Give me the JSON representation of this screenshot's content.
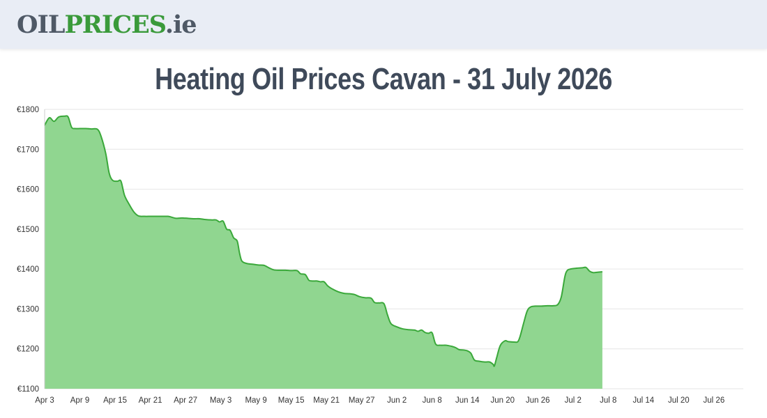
{
  "logo": {
    "part1": "OIL",
    "part2": "PRICES",
    "part3": ".ie"
  },
  "title": "Heating Oil Prices Cavan - 31 July 2026",
  "colors": {
    "area": "#90d690",
    "line": "#3aa83a",
    "grid": "#e6e6e6",
    "title": "#3f4a5a"
  },
  "chart_data": {
    "type": "area",
    "title": "Heating Oil Prices Cavan - 31 July 2026",
    "xlabel": "",
    "ylabel": "",
    "ylim": [
      1100,
      1800
    ],
    "y_ticks": [
      1100,
      1200,
      1300,
      1400,
      1500,
      1600,
      1700,
      1800
    ],
    "y_tick_labels": [
      "€1100",
      "€1200",
      "€1300",
      "€1400",
      "€1500",
      "€1600",
      "€1700",
      "€1800"
    ],
    "x_tick_labels": [
      "Apr 3",
      "Apr 9",
      "Apr 15",
      "Apr 21",
      "Apr 27",
      "May 3",
      "May 9",
      "May 15",
      "May 21",
      "May 27",
      "Jun 2",
      "Jun 8",
      "Jun 14",
      "Jun 20",
      "Jun 26",
      "Jul 2",
      "Jul 8",
      "Jul 14",
      "Jul 20",
      "Jul 26"
    ],
    "x_tick_step_days": 6,
    "grid": true,
    "series": [
      {
        "values": [
          [
            0,
            1760
          ],
          [
            0.8,
            1779
          ],
          [
            1.6,
            1770
          ],
          [
            2.4,
            1781
          ],
          [
            3.4,
            1783
          ],
          [
            4.0,
            1781
          ],
          [
            4.6,
            1755
          ],
          [
            5.2,
            1752
          ],
          [
            6.0,
            1752
          ],
          [
            7.0,
            1752
          ],
          [
            8.0,
            1751
          ],
          [
            9.0,
            1750
          ],
          [
            9.6,
            1733
          ],
          [
            10.4,
            1690
          ],
          [
            11.0,
            1640
          ],
          [
            11.6,
            1622
          ],
          [
            12.4,
            1620
          ],
          [
            13.0,
            1620
          ],
          [
            13.6,
            1585
          ],
          [
            14.4,
            1562
          ],
          [
            15.2,
            1543
          ],
          [
            16.0,
            1533
          ],
          [
            17.0,
            1532
          ],
          [
            18.0,
            1532
          ],
          [
            19.0,
            1532
          ],
          [
            20.0,
            1532
          ],
          [
            21.0,
            1532
          ],
          [
            21.6,
            1530
          ],
          [
            22.4,
            1527
          ],
          [
            23.4,
            1528
          ],
          [
            24.4,
            1527
          ],
          [
            25.4,
            1526
          ],
          [
            26.4,
            1526
          ],
          [
            27.4,
            1524
          ],
          [
            28.4,
            1523
          ],
          [
            29.2,
            1523
          ],
          [
            29.8,
            1518
          ],
          [
            30.4,
            1520
          ],
          [
            31.0,
            1500
          ],
          [
            31.6,
            1497
          ],
          [
            32.2,
            1478
          ],
          [
            32.8,
            1470
          ],
          [
            33.2,
            1440
          ],
          [
            33.6,
            1420
          ],
          [
            34.4,
            1414
          ],
          [
            35.4,
            1412
          ],
          [
            36.4,
            1410
          ],
          [
            37.4,
            1409
          ],
          [
            38.2,
            1403
          ],
          [
            39.0,
            1398
          ],
          [
            40.0,
            1397
          ],
          [
            41.0,
            1397
          ],
          [
            42.0,
            1396
          ],
          [
            43.0,
            1396
          ],
          [
            43.6,
            1388
          ],
          [
            44.4,
            1386
          ],
          [
            45.0,
            1372
          ],
          [
            45.6,
            1370
          ],
          [
            46.4,
            1370
          ],
          [
            47.0,
            1368
          ],
          [
            47.6,
            1368
          ],
          [
            48.2,
            1358
          ],
          [
            49.0,
            1350
          ],
          [
            50.0,
            1343
          ],
          [
            51.0,
            1339
          ],
          [
            52.0,
            1338
          ],
          [
            52.8,
            1336
          ],
          [
            53.6,
            1331
          ],
          [
            54.6,
            1328
          ],
          [
            55.6,
            1327
          ],
          [
            56.2,
            1316
          ],
          [
            57.0,
            1315
          ],
          [
            57.8,
            1313
          ],
          [
            58.4,
            1285
          ],
          [
            59.0,
            1263
          ],
          [
            60.0,
            1255
          ],
          [
            61.0,
            1250
          ],
          [
            62.0,
            1248
          ],
          [
            63.0,
            1247
          ],
          [
            63.6,
            1244
          ],
          [
            64.2,
            1247
          ],
          [
            64.8,
            1241
          ],
          [
            65.4,
            1239
          ],
          [
            66.0,
            1240
          ],
          [
            66.6,
            1212
          ],
          [
            67.4,
            1209
          ],
          [
            68.4,
            1209
          ],
          [
            69.4,
            1206
          ],
          [
            70.0,
            1203
          ],
          [
            70.6,
            1198
          ],
          [
            71.4,
            1197
          ],
          [
            72.0,
            1195
          ],
          [
            72.6,
            1189
          ],
          [
            73.2,
            1172
          ],
          [
            74.0,
            1169
          ],
          [
            75.0,
            1167
          ],
          [
            75.8,
            1167
          ],
          [
            76.4,
            1161
          ],
          [
            76.6,
            1157
          ],
          [
            77.0,
            1178
          ],
          [
            77.6,
            1208
          ],
          [
            78.4,
            1220
          ],
          [
            79.0,
            1218
          ],
          [
            80.0,
            1217
          ],
          [
            80.6,
            1218
          ],
          [
            81.0,
            1232
          ],
          [
            81.6,
            1265
          ],
          [
            82.2,
            1295
          ],
          [
            82.8,
            1305
          ],
          [
            83.6,
            1307
          ],
          [
            84.6,
            1307
          ],
          [
            85.6,
            1308
          ],
          [
            86.6,
            1308
          ],
          [
            87.4,
            1311
          ],
          [
            88.0,
            1330
          ],
          [
            88.6,
            1380
          ],
          [
            89.0,
            1396
          ],
          [
            89.6,
            1400
          ],
          [
            90.6,
            1402
          ],
          [
            91.6,
            1403
          ],
          [
            92.2,
            1404
          ],
          [
            92.8,
            1395
          ],
          [
            93.4,
            1391
          ],
          [
            94.2,
            1392
          ],
          [
            95.0,
            1393
          ]
        ]
      }
    ]
  }
}
